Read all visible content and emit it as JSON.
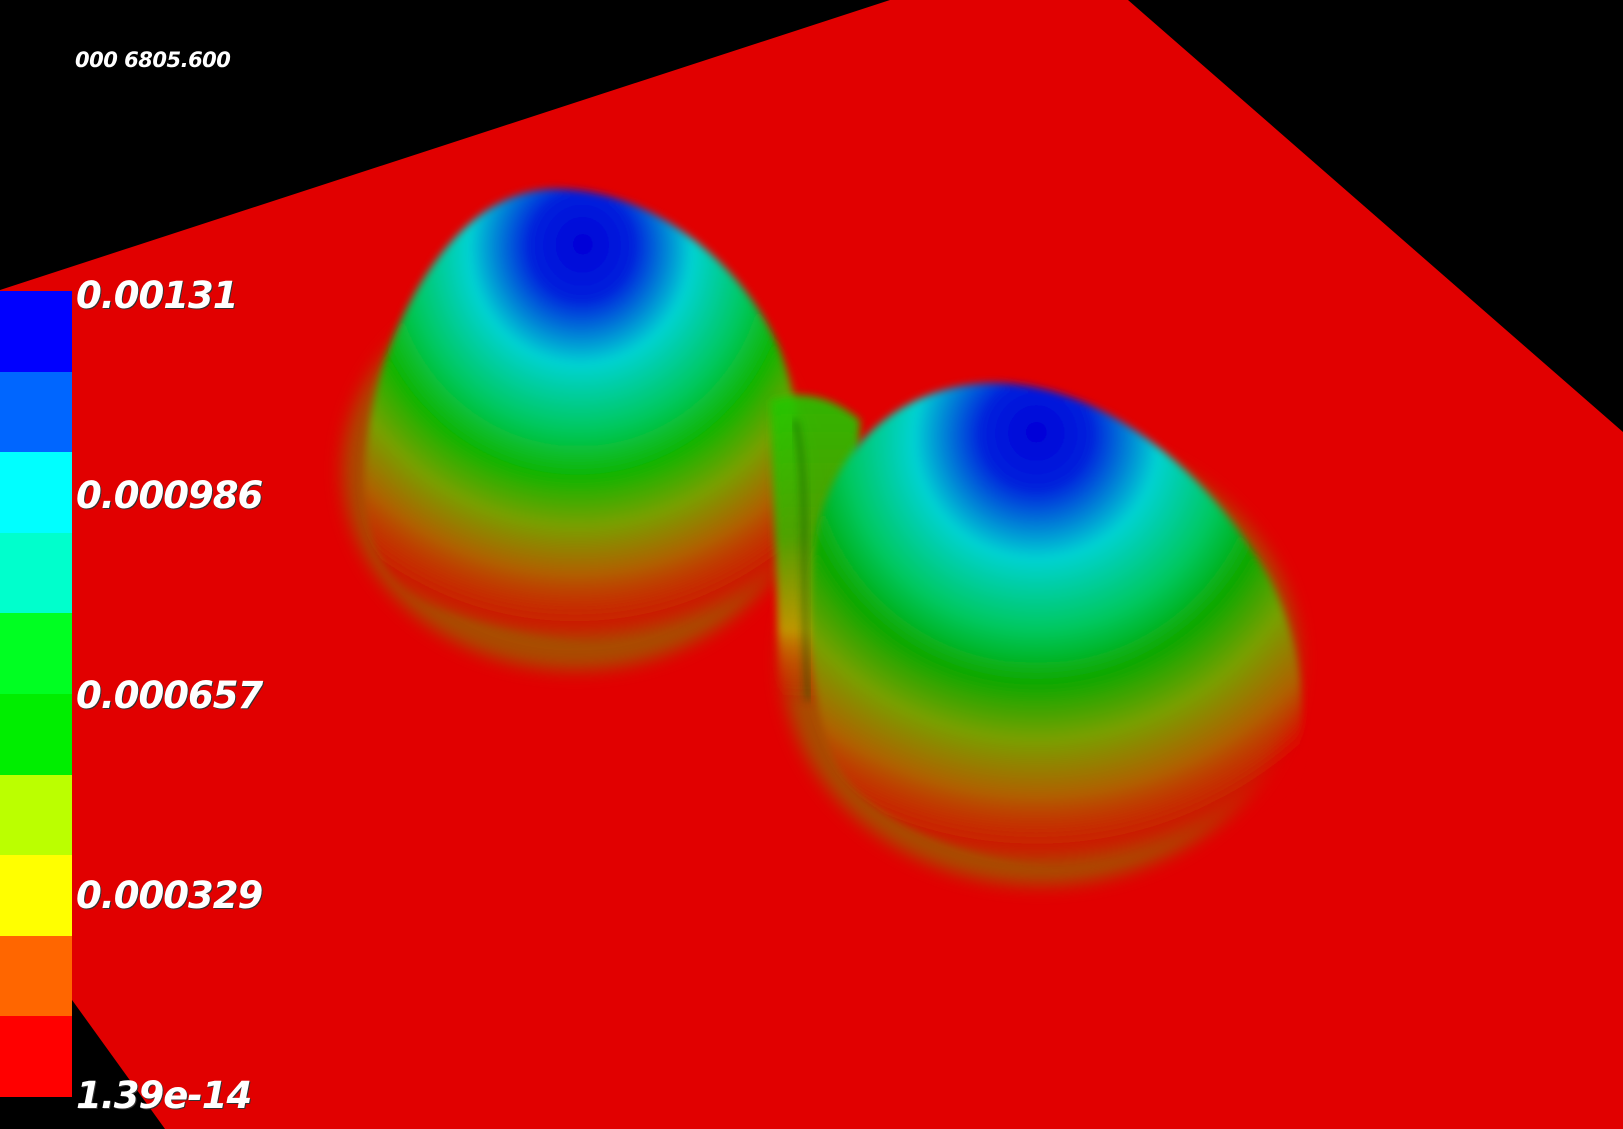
{
  "time_text": "000 6805.600",
  "colorbar": {
    "ticks": [
      "0.00131",
      "0.000986",
      "0.000657",
      "0.000329",
      "1.39e-14"
    ],
    "swatches": [
      "#0000ff",
      "#0066ff",
      "#00ffff",
      "#00ffcc",
      "#00ff22",
      "#00ee00",
      "#bbff00",
      "#ffff00",
      "#ff6600",
      "#ff0000"
    ]
  },
  "colors": {
    "background": "#000000",
    "plane": "#e10000",
    "peak": "#0000d8"
  }
}
